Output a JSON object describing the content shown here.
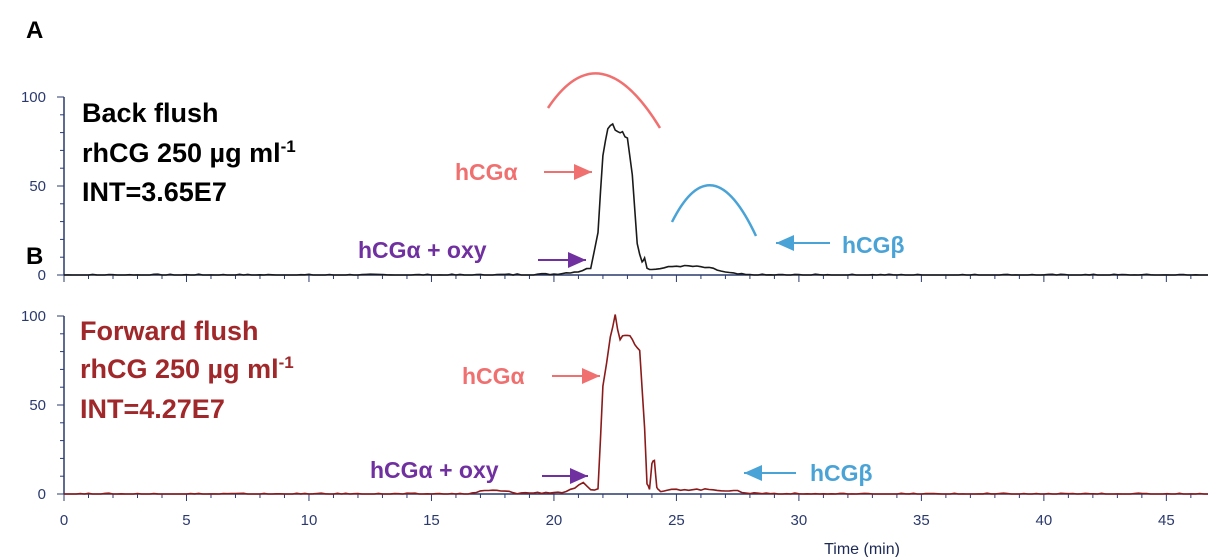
{
  "colors": {
    "axis": "#2b3a6e",
    "trace_A": "#1a1a1a",
    "trace_B": "#8b1a1a",
    "alpha": "#f07070",
    "beta": "#4aa3d6",
    "oxy": "#7030a0",
    "forward_text": "#a0282a"
  },
  "chart_data": [
    {
      "type": "line",
      "panel": "A",
      "xlabel": "",
      "xlim": [
        0,
        46.7
      ],
      "ylim": [
        0,
        100
      ],
      "yticks": [
        "0",
        "50",
        "100"
      ],
      "x_major_ticks": [
        0,
        5,
        10,
        15,
        20,
        25,
        30,
        35,
        40,
        45
      ],
      "annotation": {
        "line1": "Back flush",
        "line2": "rhCG 250 µg ml",
        "line2_sup": "-1",
        "line3": "INT=3.65E7"
      },
      "labels": {
        "alpha": "hCGα",
        "oxy": "hCGα + oxy",
        "beta": "hCGβ"
      },
      "series": [
        {
          "x": [
            0,
            17,
            20,
            21,
            21.5,
            21.8,
            22.0,
            22.2,
            22.4,
            22.6,
            22.8,
            23.0,
            23.2,
            23.4,
            23.6,
            23.7,
            23.8,
            24.0,
            24.5,
            25.0,
            25.5,
            26.0,
            26.5,
            27.0,
            27.5,
            28.0,
            30,
            46.7
          ],
          "y": [
            0,
            0,
            0.5,
            2,
            4,
            25,
            68,
            83,
            85,
            80,
            80,
            76,
            56,
            18,
            7,
            10,
            4,
            3,
            4,
            5,
            5,
            4.5,
            3.5,
            1.5,
            0.5,
            0,
            0,
            0
          ]
        }
      ]
    },
    {
      "type": "line",
      "panel": "B",
      "xlabel": "Time (min)",
      "xlim": [
        0,
        46.7
      ],
      "ylim": [
        0,
        100
      ],
      "yticks": [
        "0",
        "50",
        "100"
      ],
      "xticks": [
        "0",
        "5",
        "10",
        "15",
        "20",
        "25",
        "30",
        "35",
        "40",
        "45"
      ],
      "x_major_ticks": [
        0,
        5,
        10,
        15,
        20,
        25,
        30,
        35,
        40,
        45
      ],
      "annotation": {
        "line1": "Forward flush",
        "line2": "rhCG 250 µg ml",
        "line2_sup": "-1",
        "line3": "INT=4.27E7"
      },
      "labels": {
        "alpha": "hCGα",
        "oxy": "hCGα + oxy",
        "beta": "hCGβ"
      },
      "series": [
        {
          "x": [
            0,
            16.5,
            17.0,
            17.5,
            18.0,
            18.5,
            20.5,
            21.2,
            21.5,
            21.8,
            22.0,
            22.3,
            22.5,
            22.7,
            22.9,
            23.1,
            23.3,
            23.5,
            23.7,
            23.8,
            23.9,
            24.0,
            24.1,
            24.2,
            24.3,
            24.4,
            24.6,
            25.0,
            26.0,
            26.5,
            27.0,
            27.5,
            28.0,
            30,
            46.7
          ],
          "y": [
            0,
            0,
            1.5,
            2,
            1.5,
            0.5,
            1,
            6,
            2,
            3,
            60,
            88,
            100,
            87,
            90,
            90,
            85,
            80,
            38,
            6,
            3,
            17,
            20,
            4,
            2,
            1,
            2,
            2.5,
            2.5,
            2.5,
            2,
            1.5,
            0.5,
            0,
            0
          ]
        }
      ]
    }
  ],
  "panel_letters": {
    "A": "A",
    "B": "B"
  }
}
